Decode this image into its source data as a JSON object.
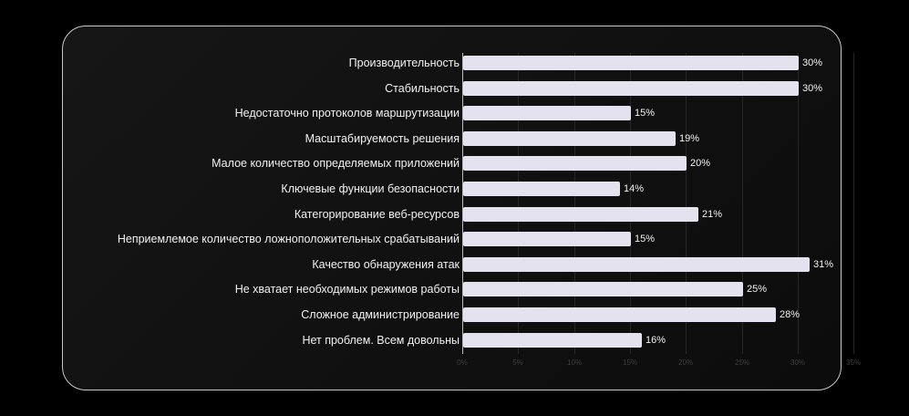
{
  "chart_data": {
    "type": "bar",
    "orientation": "horizontal",
    "title": "",
    "xlabel": "",
    "ylabel": "",
    "categories": [
      "Производительность",
      "Стабильность",
      "Недостаточно протоколов маршрутизации",
      "Масштабируемость решения",
      "Малое количество определяемых приложений",
      "Ключевые функции безопасности",
      "Категорирование веб-ресурсов",
      "Неприемлемое количество ложноположительных срабатываний",
      "Качество обнаружения атак",
      "Не хватает необходимых режимов работы",
      "Сложное администрирование",
      "Нет проблем. Всем довольны"
    ],
    "values": [
      30,
      30,
      15,
      19,
      20,
      14,
      21,
      15,
      31,
      25,
      28,
      16
    ],
    "value_labels": [
      "30%",
      "30%",
      "15%",
      "19%",
      "20%",
      "14%",
      "21%",
      "15%",
      "31%",
      "25%",
      "28%",
      "16%"
    ],
    "unit": "%",
    "xlim": [
      0,
      35
    ],
    "x_ticks": [
      0,
      5,
      10,
      15,
      20,
      25,
      30,
      35
    ],
    "x_tick_labels": [
      "0%",
      "5%",
      "10%",
      "15%",
      "20%",
      "25%",
      "30%",
      "35%"
    ],
    "grid": true,
    "legend": null,
    "colors": {
      "bar": "#e4e2ee",
      "background": "#111111",
      "frame_border": "#c9c9c9",
      "text": "#f2f2f2"
    }
  }
}
